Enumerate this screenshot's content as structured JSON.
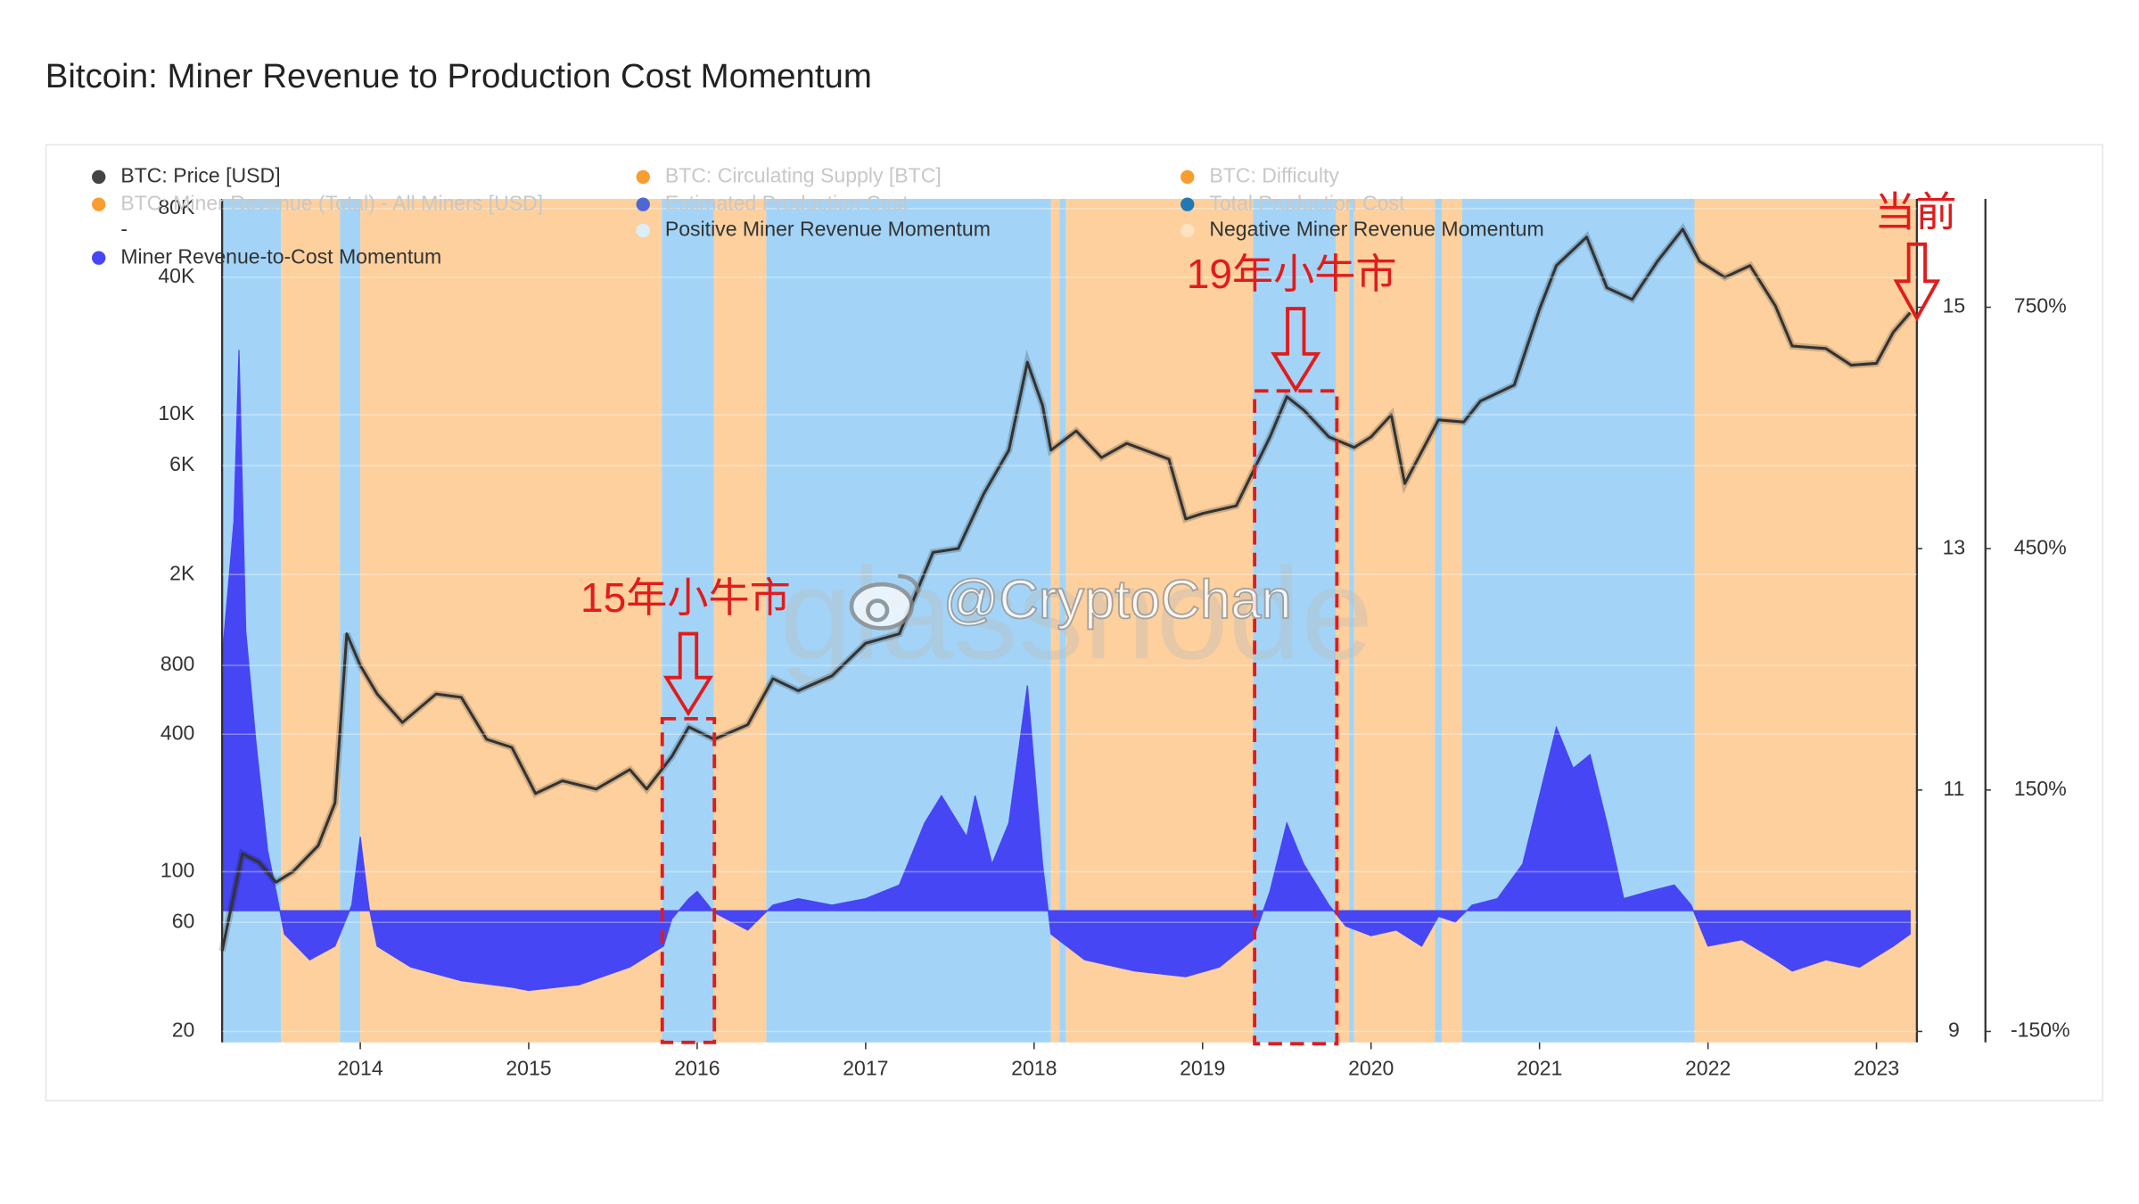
{
  "chart_data": {
    "type": "line",
    "title": "Bitcoin: Miner Revenue to Production Cost Momentum",
    "xlim": [
      2013.18,
      2023.24
    ],
    "xticks": [
      2014,
      2015,
      2016,
      2017,
      2018,
      2019,
      2020,
      2021,
      2022,
      2023
    ],
    "ylim": [
      20,
      80000
    ],
    "log_scale": true,
    "yticks": [
      20,
      60,
      100,
      400,
      800,
      {
        "value": 2000,
        "label": "2K"
      },
      {
        "value": 6000,
        "label": "6K"
      },
      {
        "value": 10000,
        "label": "10K"
      },
      {
        "value": 40000,
        "label": "40K"
      },
      {
        "value": 80000,
        "label": "80K"
      }
    ],
    "y2lim": [
      9,
      15
    ],
    "y2ticks": [
      9,
      11,
      13,
      15
    ],
    "y3lim": [
      -150,
      750
    ],
    "y3ticks": [
      {
        "value": -150,
        "label": "-150%"
      },
      {
        "value": 150,
        "label": "150%"
      },
      {
        "value": 450,
        "label": "450%"
      },
      {
        "value": 750,
        "label": "750%"
      }
    ],
    "legend": [
      {
        "name": "BTC: Price [USD]",
        "color": "#444444",
        "active": true
      },
      {
        "name": "BTC: Circulating Supply [BTC]",
        "color": "#f7931a",
        "active": false
      },
      {
        "name": "BTC: Difficulty",
        "color": "#f7931a",
        "active": false
      },
      {
        "name": "BTC: Miner Revenue (Total) - All Miners [USD]",
        "color": "#f7931a",
        "active": false
      },
      {
        "name": "Estimated Production Cost",
        "color": "#3b5bdb",
        "active": false
      },
      {
        "name": "Total Production Cost",
        "color": "#0a6eb4",
        "active": false
      },
      {
        "name": "-",
        "color": null,
        "active": true
      },
      {
        "name": "Positive Miner Revenue Momentum",
        "color": "#dbeefc",
        "active": true
      },
      {
        "name": "Negative Miner Revenue Momentum",
        "color": "#fde3c4",
        "active": true
      },
      {
        "name": "Miner Revenue-to-Cost Momentum",
        "color": "#4646f5",
        "active": true
      }
    ],
    "region_colors": {
      "positive": "#a3d4f7",
      "negative": "#fdd09d"
    },
    "regions": [
      {
        "start": 2013.18,
        "end": 2013.53,
        "kind": "positive"
      },
      {
        "start": 2013.53,
        "end": 2013.88,
        "kind": "negative"
      },
      {
        "start": 2013.88,
        "end": 2014.0,
        "kind": "positive"
      },
      {
        "start": 2014.0,
        "end": 2015.79,
        "kind": "negative"
      },
      {
        "start": 2015.79,
        "end": 2016.1,
        "kind": "positive"
      },
      {
        "start": 2016.1,
        "end": 2016.41,
        "kind": "negative"
      },
      {
        "start": 2016.41,
        "end": 2018.1,
        "kind": "positive"
      },
      {
        "start": 2018.1,
        "end": 2018.15,
        "kind": "negative"
      },
      {
        "start": 2018.15,
        "end": 2018.19,
        "kind": "positive"
      },
      {
        "start": 2018.19,
        "end": 2019.3,
        "kind": "negative"
      },
      {
        "start": 2019.3,
        "end": 2019.79,
        "kind": "positive"
      },
      {
        "start": 2019.79,
        "end": 2019.87,
        "kind": "negative"
      },
      {
        "start": 2019.87,
        "end": 2019.9,
        "kind": "positive"
      },
      {
        "start": 2019.9,
        "end": 2020.38,
        "kind": "negative"
      },
      {
        "start": 2020.38,
        "end": 2020.42,
        "kind": "positive"
      },
      {
        "start": 2020.42,
        "end": 2020.54,
        "kind": "negative"
      },
      {
        "start": 2020.54,
        "end": 2021.92,
        "kind": "positive"
      },
      {
        "start": 2021.92,
        "end": 2023.24,
        "kind": "negative"
      }
    ],
    "series": [
      {
        "name": "BTC: Price [USD]",
        "type": "line",
        "axis": "y",
        "color": "#333333",
        "x": [
          2013.18,
          2013.3,
          2013.4,
          2013.5,
          2013.6,
          2013.75,
          2013.85,
          2013.92,
          2014.0,
          2014.1,
          2014.25,
          2014.45,
          2014.6,
          2014.75,
          2014.9,
          2015.04,
          2015.2,
          2015.4,
          2015.6,
          2015.7,
          2015.85,
          2015.95,
          2016.1,
          2016.3,
          2016.45,
          2016.6,
          2016.8,
          2017.0,
          2017.2,
          2017.4,
          2017.55,
          2017.7,
          2017.85,
          2017.96,
          2018.05,
          2018.1,
          2018.25,
          2018.4,
          2018.55,
          2018.8,
          2018.9,
          2019.0,
          2019.2,
          2019.4,
          2019.5,
          2019.6,
          2019.75,
          2019.9,
          2020.0,
          2020.12,
          2020.2,
          2020.4,
          2020.55,
          2020.65,
          2020.85,
          2021.0,
          2021.1,
          2021.28,
          2021.4,
          2021.55,
          2021.7,
          2021.85,
          2021.95,
          2022.1,
          2022.25,
          2022.4,
          2022.5,
          2022.7,
          2022.85,
          2023.0,
          2023.1,
          2023.2
        ],
        "values": [
          45,
          120,
          110,
          90,
          100,
          130,
          200,
          1100,
          800,
          600,
          450,
          600,
          580,
          380,
          350,
          220,
          250,
          230,
          280,
          230,
          320,
          430,
          380,
          440,
          700,
          620,
          720,
          1000,
          1100,
          2500,
          2600,
          4500,
          7000,
          17000,
          11000,
          7000,
          8500,
          6500,
          7500,
          6400,
          3500,
          3700,
          4000,
          8000,
          12000,
          10500,
          8000,
          7200,
          8000,
          10000,
          5000,
          9500,
          9300,
          11500,
          13500,
          29000,
          45000,
          60000,
          36000,
          32000,
          47000,
          65000,
          47000,
          40000,
          45000,
          30000,
          20000,
          19500,
          16500,
          16800,
          23000,
          28000
        ]
      },
      {
        "name": "Miner Revenue-to-Cost Momentum",
        "type": "area",
        "axis": "y3",
        "color": "#4646f5",
        "x": [
          2013.18,
          2013.25,
          2013.28,
          2013.32,
          2013.38,
          2013.45,
          2013.5,
          2013.55,
          2013.7,
          2013.85,
          2013.95,
          2014.0,
          2014.05,
          2014.1,
          2014.3,
          2014.6,
          2014.9,
          2015.0,
          2015.3,
          2015.6,
          2015.8,
          2015.85,
          2015.95,
          2016.0,
          2016.1,
          2016.3,
          2016.45,
          2016.6,
          2016.8,
          2017.0,
          2017.2,
          2017.35,
          2017.45,
          2017.6,
          2017.65,
          2017.75,
          2017.85,
          2017.96,
          2018.05,
          2018.1,
          2018.3,
          2018.6,
          2018.9,
          2019.1,
          2019.3,
          2019.4,
          2019.5,
          2019.6,
          2019.75,
          2019.85,
          2020.0,
          2020.15,
          2020.3,
          2020.4,
          2020.5,
          2020.6,
          2020.75,
          2020.9,
          2021.0,
          2021.1,
          2021.2,
          2021.3,
          2021.4,
          2021.5,
          2021.65,
          2021.8,
          2021.9,
          2022.0,
          2022.2,
          2022.4,
          2022.5,
          2022.7,
          2022.9,
          2023.1,
          2023.2
        ],
        "values": [
          314,
          484,
          697,
          348,
          211,
          75,
          24,
          -29,
          -61,
          -44,
          7,
          92,
          7,
          -44,
          -70,
          -87,
          -95,
          -99,
          -92,
          -70,
          -44,
          -10,
          15,
          24,
          -2,
          -24,
          7,
          15,
          7,
          15,
          32,
          109,
          143,
          92,
          143,
          58,
          109,
          280,
          58,
          -29,
          -61,
          -75,
          -82,
          -70,
          -36,
          24,
          109,
          58,
          7,
          -19,
          -31,
          -24,
          -44,
          -7,
          -14,
          7,
          15,
          58,
          143,
          228,
          177,
          194,
          109,
          15,
          24,
          32,
          7,
          -44,
          -36,
          -61,
          -75,
          -61,
          -70,
          -44,
          -29
        ]
      }
    ],
    "annotations": [
      "15年小牛市",
      "19年小牛市",
      "当前"
    ],
    "watermarks": [
      "glassnode",
      "@CryptoChan"
    ]
  }
}
